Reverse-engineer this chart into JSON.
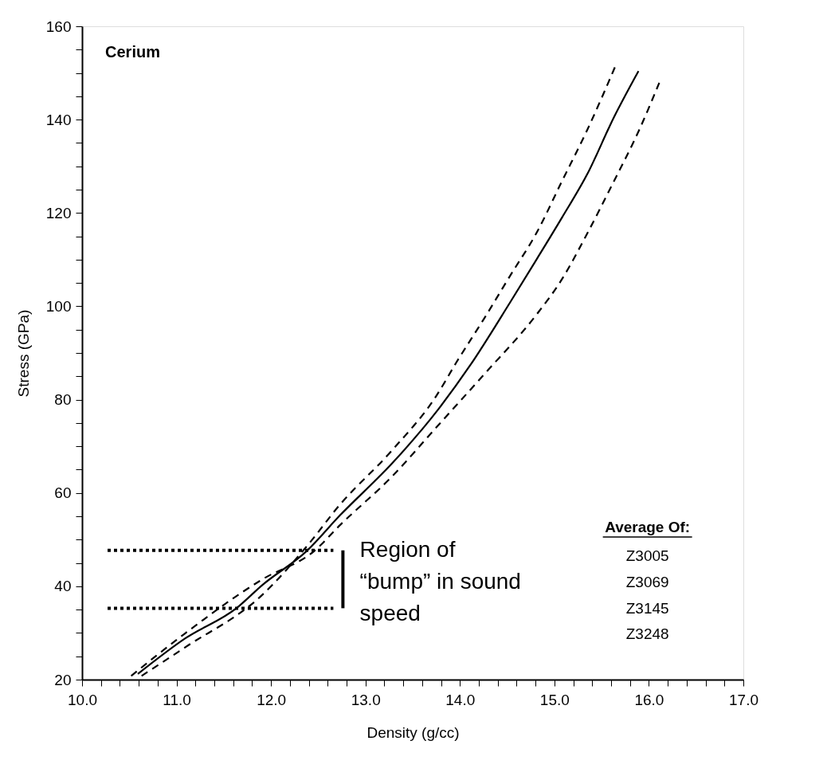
{
  "chart_data": {
    "type": "line",
    "xlabel": "Density (g/cc)",
    "ylabel": "Stress (GPa)",
    "xlim": [
      10.0,
      17.0
    ],
    "ylim": [
      20,
      160
    ],
    "xticks": [
      {
        "value": 10.0,
        "label": "10.0"
      },
      {
        "value": 10.2,
        "label": null
      },
      {
        "value": 10.4,
        "label": null
      },
      {
        "value": 10.6,
        "label": null
      },
      {
        "value": 10.8,
        "label": null
      },
      {
        "value": 11.0,
        "label": "11.0"
      },
      {
        "value": 11.2,
        "label": null
      },
      {
        "value": 11.4,
        "label": null
      },
      {
        "value": 11.6,
        "label": null
      },
      {
        "value": 11.8,
        "label": null
      },
      {
        "value": 12.0,
        "label": "12.0"
      },
      {
        "value": 12.2,
        "label": null
      },
      {
        "value": 12.4,
        "label": null
      },
      {
        "value": 12.6,
        "label": null
      },
      {
        "value": 12.8,
        "label": null
      },
      {
        "value": 13.0,
        "label": "13.0"
      },
      {
        "value": 13.2,
        "label": null
      },
      {
        "value": 13.4,
        "label": null
      },
      {
        "value": 13.6,
        "label": null
      },
      {
        "value": 13.8,
        "label": null
      },
      {
        "value": 14.0,
        "label": "14.0"
      },
      {
        "value": 14.2,
        "label": null
      },
      {
        "value": 14.4,
        "label": null
      },
      {
        "value": 14.6,
        "label": null
      },
      {
        "value": 14.8,
        "label": null
      },
      {
        "value": 15.0,
        "label": "15.0"
      },
      {
        "value": 15.2,
        "label": null
      },
      {
        "value": 15.4,
        "label": null
      },
      {
        "value": 15.6,
        "label": null
      },
      {
        "value": 15.8,
        "label": null
      },
      {
        "value": 16.0,
        "label": "16.0"
      },
      {
        "value": 16.2,
        "label": null
      },
      {
        "value": 16.4,
        "label": null
      },
      {
        "value": 16.6,
        "label": null
      },
      {
        "value": 16.8,
        "label": null
      },
      {
        "value": 17.0,
        "label": "17.0"
      }
    ],
    "yticks": [
      20,
      {
        "value": 25,
        "label": null
      },
      {
        "value": 30,
        "label": null
      },
      {
        "value": 35,
        "label": null
      },
      40,
      {
        "value": 45,
        "label": null
      },
      {
        "value": 50,
        "label": null
      },
      {
        "value": 55,
        "label": null
      },
      60,
      {
        "value": 65,
        "label": null
      },
      {
        "value": 70,
        "label": null
      },
      {
        "value": 75,
        "label": null
      },
      80,
      {
        "value": 85,
        "label": null
      },
      {
        "value": 90,
        "label": null
      },
      {
        "value": 95,
        "label": null
      },
      100,
      {
        "value": 105,
        "label": null
      },
      {
        "value": 110,
        "label": null
      },
      {
        "value": 115,
        "label": null
      },
      120,
      {
        "value": 125,
        "label": null
      },
      {
        "value": 130,
        "label": null
      },
      {
        "value": 135,
        "label": null
      },
      140,
      {
        "value": 145,
        "label": null
      },
      {
        "value": 150,
        "label": null
      },
      {
        "value": 155,
        "label": null
      },
      160
    ],
    "grid": false,
    "marker": "none",
    "series": [
      {
        "color": "#000000",
        "line_style": "solid",
        "x": [
          10.59,
          11.09,
          11.64,
          11.91,
          12.38,
          12.73,
          13.28,
          13.77,
          14.11,
          14.53,
          14.81,
          15.08,
          15.35,
          15.63,
          15.89
        ],
        "values": [
          21.2,
          28.8,
          35.4,
          40.3,
          47.6,
          55.2,
          66.3,
          77.9,
          87.4,
          100.8,
          110,
          119,
          128.4,
          140.5,
          150.4
        ]
      },
      {
        "color": "#000000",
        "line_style": "dashed",
        "x": [
          10.63,
          11.09,
          11.91,
          12.38,
          12.73,
          13.28,
          13.75,
          13.96,
          14.26,
          14.53,
          14.81,
          15.08,
          15.35,
          15.64
        ],
        "values": [
          20.8,
          26.9,
          38.2,
          48.6,
          57.5,
          69.1,
          80.8,
          87.9,
          97.5,
          106.5,
          115.7,
          126.8,
          137.9,
          151.2
        ]
      },
      {
        "color": "#000000",
        "line_style": "dashed",
        "x": [
          10.52,
          11.09,
          11.91,
          12.46,
          12.73,
          13.28,
          13.77,
          14.26,
          14.81,
          15.08,
          15.35,
          15.63,
          15.9,
          16.11
        ],
        "values": [
          20.8,
          29.9,
          41.5,
          47.6,
          53.1,
          63.5,
          74.5,
          85.5,
          98.2,
          105.8,
          115.7,
          126.8,
          137.9,
          147.9
        ]
      },
      {
        "color": "#000000",
        "line_style": "dotted",
        "x": [
          10.27,
          12.66
        ],
        "values": [
          47.7,
          47.7
        ]
      },
      {
        "color": "#000000",
        "line_style": "dotted",
        "x": [
          10.27,
          12.66
        ],
        "values": [
          35.3,
          35.3
        ]
      }
    ],
    "annotations": [
      "Cerium",
      "Region of “bump” in sound speed",
      "Average Of:",
      "Z3005",
      "Z3069",
      "Z3145",
      "Z3248"
    ]
  }
}
